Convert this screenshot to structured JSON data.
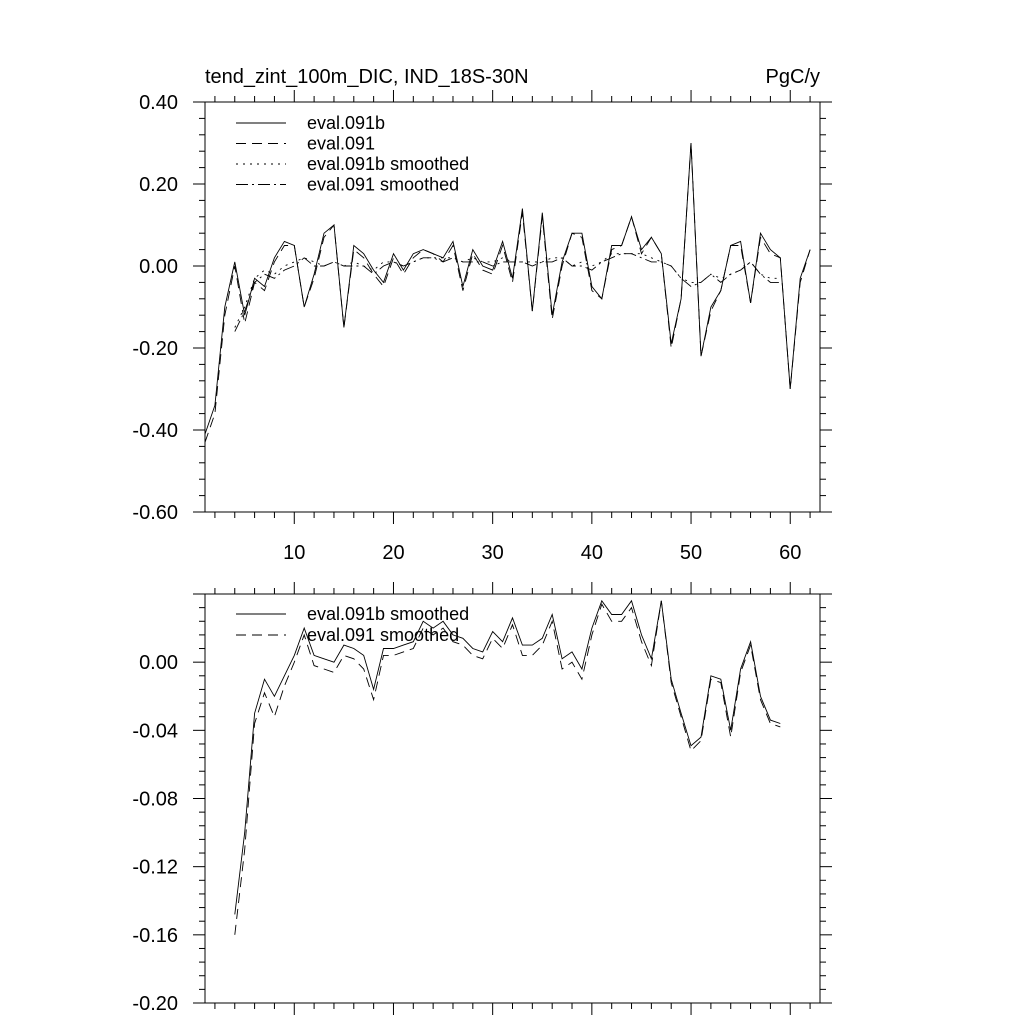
{
  "chart_data": [
    {
      "type": "line",
      "title_left": "tend_zint_100m_DIC, IND_18S-30N",
      "title_right": "PgC/y",
      "xlim": [
        1,
        63
      ],
      "ylim": [
        -0.6,
        0.4
      ],
      "x_ticks": [
        10,
        20,
        30,
        40,
        50,
        60
      ],
      "y_ticks": [
        0.4,
        0.2,
        0.0,
        -0.2,
        -0.4,
        -0.6
      ],
      "y_tick_labels": [
        "0.40",
        "0.20",
        "0.00",
        "-0.20",
        "-0.40",
        "-0.60"
      ],
      "legend_position": "top-left",
      "series": [
        {
          "name": "eval.091b",
          "style": "solid",
          "x": [
            1,
            2,
            3,
            4,
            5,
            6,
            7,
            8,
            9,
            10,
            11,
            12,
            13,
            14,
            15,
            16,
            17,
            18,
            19,
            20,
            21,
            22,
            23,
            24,
            25,
            26,
            27,
            28,
            29,
            30,
            31,
            32,
            33,
            34,
            35,
            36,
            37,
            38,
            39,
            40,
            41,
            42,
            43,
            44,
            45,
            46,
            47,
            48,
            49,
            50,
            51,
            52,
            53,
            54,
            55,
            56,
            57,
            58,
            59,
            60,
            61,
            62
          ],
          "values": [
            -0.41,
            -0.34,
            -0.1,
            0.01,
            -0.12,
            -0.03,
            -0.05,
            0.02,
            0.06,
            0.05,
            -0.1,
            -0.02,
            0.08,
            0.1,
            -0.15,
            0.05,
            0.03,
            -0.01,
            -0.04,
            0.03,
            -0.01,
            0.03,
            0.04,
            0.03,
            0.02,
            0.06,
            -0.05,
            0.04,
            0.0,
            -0.01,
            0.06,
            -0.03,
            0.14,
            -0.11,
            0.13,
            -0.12,
            0.01,
            0.08,
            0.08,
            -0.05,
            -0.08,
            0.05,
            0.05,
            0.12,
            0.04,
            0.07,
            0.03,
            -0.19,
            -0.08,
            0.3,
            -0.22,
            -0.1,
            -0.06,
            0.05,
            0.06,
            -0.09,
            0.08,
            0.04,
            0.02,
            -0.3,
            -0.03,
            0.04
          ]
        },
        {
          "name": "eval.091",
          "style": "dash",
          "x": [
            1,
            2,
            3,
            4,
            5,
            6,
            7,
            8,
            9,
            10,
            11,
            12,
            13,
            14,
            15,
            16,
            17,
            18,
            19,
            20,
            21,
            22,
            23,
            24,
            25,
            26,
            27,
            28,
            29,
            30,
            31,
            32,
            33,
            34,
            35,
            36,
            37,
            38,
            39,
            40,
            41,
            42,
            43,
            44,
            45,
            46,
            47,
            48,
            49,
            50,
            51,
            52,
            53,
            54,
            55,
            56,
            57,
            58,
            59,
            60,
            61,
            62
          ],
          "values": [
            -0.43,
            -0.36,
            -0.12,
            0.0,
            -0.14,
            -0.04,
            -0.06,
            0.01,
            0.05,
            0.05,
            -0.1,
            -0.03,
            0.07,
            0.1,
            -0.15,
            0.04,
            0.02,
            -0.02,
            -0.05,
            0.02,
            -0.02,
            0.02,
            0.04,
            0.03,
            0.01,
            0.05,
            -0.06,
            0.03,
            -0.01,
            -0.02,
            0.05,
            -0.04,
            0.13,
            -0.11,
            0.12,
            -0.13,
            0.0,
            0.08,
            0.07,
            -0.06,
            -0.08,
            0.04,
            0.05,
            0.12,
            0.03,
            0.07,
            0.03,
            -0.2,
            -0.08,
            0.3,
            -0.22,
            -0.11,
            -0.06,
            0.05,
            0.05,
            -0.09,
            0.07,
            0.03,
            0.02,
            -0.3,
            -0.04,
            0.04
          ]
        },
        {
          "name": "eval.091b smoothed",
          "style": "dot",
          "x": [
            4,
            5,
            6,
            7,
            8,
            9,
            10,
            11,
            12,
            13,
            14,
            15,
            16,
            17,
            18,
            19,
            20,
            21,
            22,
            23,
            24,
            25,
            26,
            27,
            28,
            29,
            30,
            31,
            32,
            33,
            34,
            35,
            36,
            37,
            38,
            39,
            40,
            41,
            42,
            43,
            44,
            45,
            46,
            47,
            48,
            49,
            50,
            51,
            52,
            53,
            54,
            55,
            56,
            57,
            58,
            59
          ],
          "values": [
            -0.15,
            -0.1,
            -0.03,
            -0.01,
            -0.02,
            0.0,
            0.01,
            0.02,
            0.01,
            0.0,
            0.01,
            0.0,
            0.01,
            0.0,
            -0.01,
            0.01,
            0.01,
            0.0,
            0.01,
            0.02,
            0.02,
            0.02,
            0.02,
            0.01,
            0.02,
            0.01,
            0.01,
            0.02,
            0.01,
            0.01,
            0.01,
            0.01,
            0.02,
            0.02,
            0.0,
            0.01,
            0.0,
            0.01,
            0.03,
            0.03,
            0.03,
            0.03,
            0.02,
            0.01,
            0.0,
            -0.03,
            -0.04,
            -0.04,
            -0.02,
            -0.03,
            -0.02,
            -0.01,
            0.01,
            -0.02,
            -0.03,
            -0.03
          ]
        },
        {
          "name": "eval.091 smoothed",
          "style": "dashdot",
          "x": [
            4,
            5,
            6,
            7,
            8,
            9,
            10,
            11,
            12,
            13,
            14,
            15,
            16,
            17,
            18,
            19,
            20,
            21,
            22,
            23,
            24,
            25,
            26,
            27,
            28,
            29,
            30,
            31,
            32,
            33,
            34,
            35,
            36,
            37,
            38,
            39,
            40,
            41,
            42,
            43,
            44,
            45,
            46,
            47,
            48,
            49,
            50,
            51,
            52,
            53,
            54,
            55,
            56,
            57,
            58,
            59
          ],
          "values": [
            -0.16,
            -0.11,
            -0.04,
            -0.02,
            -0.03,
            -0.01,
            0.0,
            0.02,
            0.0,
            0.0,
            0.01,
            0.0,
            0.0,
            0.0,
            -0.02,
            0.0,
            0.01,
            0.0,
            0.01,
            0.02,
            0.02,
            0.01,
            0.02,
            0.01,
            0.01,
            0.01,
            0.0,
            0.01,
            0.01,
            0.01,
            0.0,
            0.01,
            0.01,
            0.02,
            0.0,
            0.0,
            -0.01,
            0.01,
            0.02,
            0.03,
            0.03,
            0.02,
            0.01,
            0.01,
            0.0,
            -0.03,
            -0.05,
            -0.04,
            -0.02,
            -0.04,
            -0.02,
            -0.01,
            0.01,
            -0.02,
            -0.04,
            -0.04
          ]
        }
      ]
    },
    {
      "type": "line",
      "xlim": [
        1,
        63
      ],
      "ylim": [
        -0.2,
        0.04
      ],
      "x_ticks": [
        10,
        20,
        30,
        40,
        50,
        60
      ],
      "y_ticks": [
        0.0,
        -0.04,
        -0.08,
        -0.12,
        -0.16,
        -0.2
      ],
      "y_tick_labels": [
        "0.00",
        "-0.04",
        "-0.08",
        "-0.12",
        "-0.16",
        "-0.20"
      ],
      "legend_position": "top-left",
      "series": [
        {
          "name": "eval.091b smoothed",
          "style": "solid",
          "x": [
            4,
            5,
            6,
            7,
            8,
            9,
            10,
            11,
            12,
            13,
            14,
            15,
            16,
            17,
            18,
            19,
            20,
            21,
            22,
            23,
            24,
            25,
            26,
            27,
            28,
            29,
            30,
            31,
            32,
            33,
            34,
            35,
            36,
            37,
            38,
            39,
            40,
            41,
            42,
            43,
            44,
            45,
            46,
            47,
            48,
            49,
            50,
            51,
            52,
            53,
            54,
            55,
            56,
            57,
            58,
            59
          ],
          "values": [
            -0.148,
            -0.1,
            -0.03,
            -0.01,
            -0.02,
            -0.008,
            0.004,
            0.02,
            0.004,
            0.002,
            0.0,
            0.01,
            0.008,
            0.004,
            -0.016,
            0.008,
            0.008,
            0.01,
            0.012,
            0.024,
            0.02,
            0.024,
            0.016,
            0.014,
            0.008,
            0.006,
            0.018,
            0.012,
            0.026,
            0.01,
            0.01,
            0.014,
            0.028,
            0.002,
            0.006,
            -0.004,
            0.02,
            0.036,
            0.028,
            0.028,
            0.036,
            0.016,
            0.002,
            0.036,
            -0.01,
            -0.03,
            -0.049,
            -0.044,
            -0.008,
            -0.01,
            -0.04,
            -0.004,
            0.012,
            -0.02,
            -0.034,
            -0.036
          ]
        },
        {
          "name": "eval.091 smoothed",
          "style": "dash",
          "x": [
            4,
            5,
            6,
            7,
            8,
            9,
            10,
            11,
            12,
            13,
            14,
            15,
            16,
            17,
            18,
            19,
            20,
            21,
            22,
            23,
            24,
            25,
            26,
            27,
            28,
            29,
            30,
            31,
            32,
            33,
            34,
            35,
            36,
            37,
            38,
            39,
            40,
            41,
            42,
            43,
            44,
            45,
            46,
            47,
            48,
            49,
            50,
            51,
            52,
            53,
            54,
            55,
            56,
            57,
            58,
            59
          ],
          "values": [
            -0.16,
            -0.11,
            -0.036,
            -0.018,
            -0.032,
            -0.014,
            0.0,
            0.016,
            -0.002,
            -0.004,
            -0.006,
            0.004,
            0.002,
            -0.004,
            -0.022,
            0.004,
            0.004,
            0.006,
            0.008,
            0.02,
            0.016,
            0.02,
            0.012,
            0.01,
            0.004,
            0.002,
            0.014,
            0.008,
            0.022,
            0.004,
            0.004,
            0.01,
            0.024,
            -0.004,
            0.0,
            -0.01,
            0.016,
            0.034,
            0.024,
            0.024,
            0.032,
            0.012,
            -0.002,
            0.036,
            -0.012,
            -0.032,
            -0.052,
            -0.046,
            -0.01,
            -0.012,
            -0.044,
            -0.006,
            0.01,
            -0.022,
            -0.036,
            -0.038
          ]
        }
      ]
    }
  ]
}
